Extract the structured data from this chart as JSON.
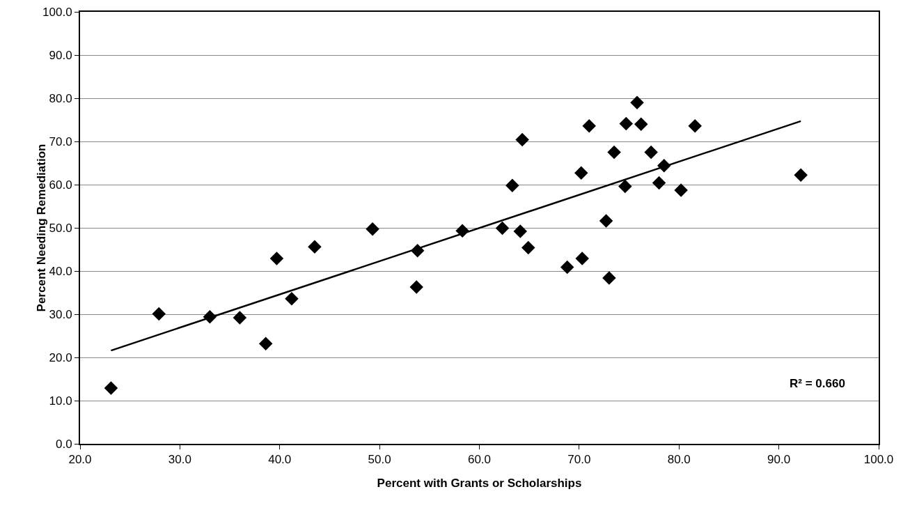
{
  "chart_data": {
    "type": "scatter",
    "xlabel": "Percent with Grants or Scholarships",
    "ylabel": "Percent Needing Remediation",
    "annotations": [
      "R² = 0.660"
    ],
    "xlim": [
      20,
      100
    ],
    "xticks": [
      {
        "value": 20,
        "label": "20.0"
      },
      {
        "value": 30,
        "label": "30.0"
      },
      {
        "value": 40,
        "label": "40.0"
      },
      {
        "value": 50,
        "label": "50.0"
      },
      {
        "value": 60,
        "label": "60.0"
      },
      {
        "value": 70,
        "label": "70.0"
      },
      {
        "value": 80,
        "label": "80.0"
      },
      {
        "value": 90,
        "label": "90.0"
      },
      {
        "value": 100,
        "label": "100.0"
      }
    ],
    "ylim": [
      0,
      100
    ],
    "yticks": [
      {
        "value": 0,
        "label": "0.0"
      },
      {
        "value": 10,
        "label": "10.0"
      },
      {
        "value": 20,
        "label": "20.0"
      },
      {
        "value": 30,
        "label": "30.0"
      },
      {
        "value": 40,
        "label": "40.0"
      },
      {
        "value": 50,
        "label": "50.0"
      },
      {
        "value": 60,
        "label": "60.0"
      },
      {
        "value": 70,
        "label": "70.0"
      },
      {
        "value": 80,
        "label": "80.0"
      },
      {
        "value": 90,
        "label": "90.0"
      },
      {
        "value": 100,
        "label": "100.0"
      }
    ],
    "grid": "y",
    "legend": false,
    "marker": "diamond",
    "series": [
      {
        "color": "#000000",
        "x": [
          23.1,
          27.9,
          33.0,
          36.0,
          38.6,
          39.7,
          41.2,
          43.5,
          49.3,
          53.7,
          53.8,
          58.3,
          62.3,
          63.3,
          64.1,
          64.3,
          64.9,
          68.8,
          70.2,
          70.3,
          71.0,
          72.7,
          73.0,
          73.5,
          74.6,
          74.7,
          75.8,
          76.2,
          77.2,
          78.0,
          78.5,
          80.2,
          81.6,
          92.2
        ],
        "values": [
          12.9,
          30.1,
          29.4,
          29.2,
          23.2,
          42.9,
          33.6,
          45.6,
          49.7,
          36.3,
          44.7,
          49.3,
          49.9,
          59.8,
          49.2,
          70.4,
          45.4,
          40.9,
          62.7,
          42.9,
          73.6,
          51.6,
          38.4,
          67.5,
          59.6,
          74.1,
          79.0,
          74.0,
          67.5,
          60.4,
          64.4,
          58.7,
          73.6,
          62.2
        ]
      },
      {
        "type": "line",
        "marker": "none",
        "color": "#000000",
        "x": [
          23.1,
          92.2
        ],
        "values": [
          21.6,
          74.7
        ]
      }
    ]
  }
}
